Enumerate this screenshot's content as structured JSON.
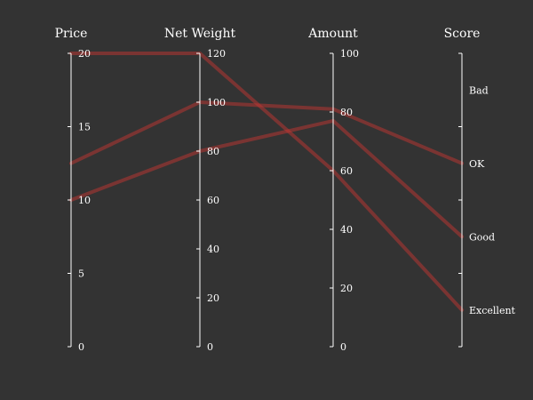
{
  "chart_data": {
    "type": "parallel_coordinates",
    "axes": [
      {
        "name": "Price",
        "kind": "value",
        "min": 0,
        "max": 20,
        "ticks": [
          0,
          5,
          10,
          15,
          20
        ],
        "tick_labels": [
          "0",
          "5",
          "10",
          "15",
          "20"
        ]
      },
      {
        "name": "Net Weight",
        "kind": "value",
        "min": 0,
        "max": 120,
        "ticks": [
          0,
          20,
          40,
          60,
          80,
          100,
          120
        ],
        "tick_labels": [
          "0",
          "20",
          "40",
          "60",
          "80",
          "100",
          "120"
        ]
      },
      {
        "name": "Amount",
        "kind": "value",
        "min": 0,
        "max": 100,
        "ticks": [
          0,
          20,
          40,
          60,
          80,
          100
        ],
        "tick_labels": [
          "0",
          "20",
          "40",
          "60",
          "80",
          "100"
        ]
      },
      {
        "name": "Score",
        "kind": "category",
        "categories": [
          "Excellent",
          "Good",
          "OK",
          "Bad"
        ],
        "tick_labels": [
          "Excellent",
          "Good",
          "OK",
          "Bad"
        ]
      }
    ],
    "series": [
      {
        "values": [
          12.5,
          100,
          81,
          "OK"
        ]
      },
      {
        "values": [
          20,
          120,
          60,
          "Excellent"
        ]
      },
      {
        "values": [
          10,
          80,
          77,
          "Good"
        ]
      }
    ],
    "line_color": "#c23531",
    "line_opacity": 0.5,
    "background": "#333333",
    "text_color": "#ffffff"
  }
}
